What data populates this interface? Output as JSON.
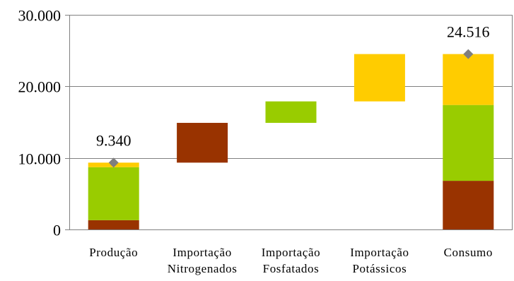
{
  "chart_data": {
    "type": "bar",
    "subtype": "waterfall-stacked",
    "title": "",
    "xlabel": "",
    "ylabel": "",
    "ylim": [
      0,
      30000
    ],
    "yticks": [
      {
        "value": 0,
        "label": "0"
      },
      {
        "value": 10000,
        "label": "10.000"
      },
      {
        "value": 20000,
        "label": "20.000"
      },
      {
        "value": 30000,
        "label": "30.000"
      }
    ],
    "grid": true,
    "legend": "none",
    "categories": [
      {
        "lines": [
          "Produção"
        ]
      },
      {
        "lines": [
          "Importação",
          "Nitrogenados"
        ]
      },
      {
        "lines": [
          "Importação",
          "Fosfatados"
        ]
      },
      {
        "lines": [
          "Importação",
          "Potássicos"
        ]
      },
      {
        "lines": [
          "Consumo"
        ]
      }
    ],
    "colors": {
      "nitrogenados": "#993300",
      "fosfatados": "#99CC00",
      "potassicos": "#FFCC00",
      "marker": "#7F7F7F"
    },
    "bars": [
      {
        "category_index": 0,
        "segments": [
          {
            "color_key": "nitrogenados",
            "start": 0,
            "end": 1300
          },
          {
            "color_key": "fosfatados",
            "start": 1300,
            "end": 8700
          },
          {
            "color_key": "potassicos",
            "start": 8700,
            "end": 9340
          }
        ]
      },
      {
        "category_index": 1,
        "segments": [
          {
            "color_key": "nitrogenados",
            "start": 9340,
            "end": 14900
          }
        ]
      },
      {
        "category_index": 2,
        "segments": [
          {
            "color_key": "fosfatados",
            "start": 14900,
            "end": 17900
          }
        ]
      },
      {
        "category_index": 3,
        "segments": [
          {
            "color_key": "potassicos",
            "start": 17900,
            "end": 24516
          }
        ]
      },
      {
        "category_index": 4,
        "segments": [
          {
            "color_key": "nitrogenados",
            "start": 0,
            "end": 6800
          },
          {
            "color_key": "fosfatados",
            "start": 6800,
            "end": 17400
          },
          {
            "color_key": "potassicos",
            "start": 17400,
            "end": 24516
          }
        ]
      }
    ],
    "markers": [
      {
        "category_index": 0,
        "value": 9340,
        "label": "9.340"
      },
      {
        "category_index": 4,
        "value": 24516,
        "label": "24.516"
      }
    ]
  }
}
